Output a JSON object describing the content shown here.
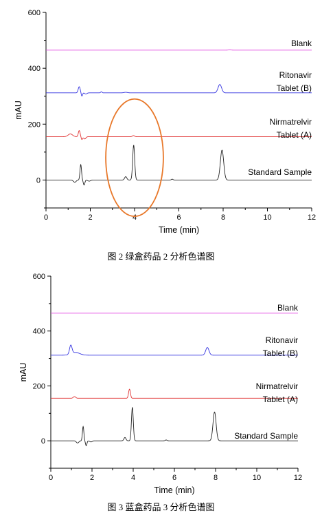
{
  "figures": [
    {
      "caption": "图 2  绿盒药品 2 分析色谱图",
      "chart_data": {
        "type": "line",
        "xlabel": "Time (min)",
        "ylabel": "mAU",
        "xlim": [
          0,
          12
        ],
        "ylim": [
          -100,
          600
        ],
        "xticks": [
          "0",
          "2",
          "4",
          "6",
          "8",
          "10",
          "12"
        ],
        "yticks": [
          "0",
          "200",
          "400",
          "600"
        ],
        "grid": false,
        "legend": "none",
        "series": [
          {
            "name": "Blank",
            "labels": [
              "Blank"
            ],
            "color": "#e040e0",
            "baseline": 465,
            "peaks": [
              [
                8.3,
                1.5,
                0.05
              ]
            ]
          },
          {
            "name": "Ritonavir Tablet (B)",
            "labels": [
              "Ritonavir",
              "Tablet (B)"
            ],
            "color": "#3030e0",
            "baseline": 312,
            "peaks": [
              [
                1.5,
                22,
                0.045
              ],
              [
                1.62,
                -12,
                0.03
              ],
              [
                1.8,
                -4,
                0.05
              ],
              [
                2.5,
                4,
                0.03
              ],
              [
                3.6,
                2,
                0.08
              ],
              [
                7.85,
                30,
                0.08
              ]
            ]
          },
          {
            "name": "Nirmatrelvir Tablet (A)",
            "labels": [
              "Nirmatrelvir",
              "Tablet (A)"
            ],
            "color": "#e03030",
            "baseline": 155,
            "peaks": [
              [
                1.1,
                10,
                0.1
              ],
              [
                1.5,
                22,
                0.04
              ],
              [
                1.62,
                -10,
                0.03
              ],
              [
                1.75,
                -8,
                0.05
              ],
              [
                3.95,
                4,
                0.05
              ]
            ]
          },
          {
            "name": "Standard Sample",
            "labels": [
              "Standard Sample"
            ],
            "color": "#222222",
            "baseline": 0,
            "peaks": [
              [
                1.3,
                -8,
                0.06
              ],
              [
                1.57,
                55,
                0.035
              ],
              [
                1.72,
                -18,
                0.035
              ],
              [
                1.95,
                -4,
                0.06
              ],
              [
                3.6,
                12,
                0.05
              ],
              [
                3.96,
                125,
                0.045
              ],
              [
                5.7,
                3,
                0.04
              ],
              [
                7.95,
                107,
                0.075
              ]
            ]
          }
        ],
        "annotation": {
          "type": "ellipse",
          "center": [
            4.0,
            80
          ],
          "radius": [
            1.3,
            210
          ],
          "color": "#e8782a"
        }
      }
    },
    {
      "caption": "图 3  蓝盒药品 3 分析色谱图",
      "chart_data": {
        "type": "line",
        "xlabel": "Time (min)",
        "ylabel": "mAU",
        "xlim": [
          0,
          12
        ],
        "ylim": [
          -100,
          600
        ],
        "xticks": [
          "0",
          "2",
          "4",
          "6",
          "8",
          "10",
          "12"
        ],
        "yticks": [
          "0",
          "200",
          "400",
          "600"
        ],
        "grid": false,
        "legend": "none",
        "series": [
          {
            "name": "Blank",
            "labels": [
              "Blank"
            ],
            "color": "#e040e0",
            "baseline": 465,
            "peaks": []
          },
          {
            "name": "Ritonavir Tablet (B)",
            "labels": [
              "Ritonavir",
              "Tablet (B)"
            ],
            "color": "#3030e0",
            "baseline": 312,
            "peaks": [
              [
                0.97,
                32,
                0.06
              ],
              [
                1.2,
                10,
                0.2
              ],
              [
                7.6,
                28,
                0.08
              ]
            ]
          },
          {
            "name": "Nirmatrelvir Tablet (A)",
            "labels": [
              "Nirmatrelvir",
              "Tablet (A)"
            ],
            "color": "#e03030",
            "baseline": 155,
            "peaks": [
              [
                1.15,
                6,
                0.06
              ],
              [
                3.82,
                33,
                0.045
              ]
            ]
          },
          {
            "name": "Standard Sample",
            "labels": [
              "Standard Sample"
            ],
            "color": "#222222",
            "baseline": 0,
            "peaks": [
              [
                1.3,
                -8,
                0.06
              ],
              [
                1.57,
                52,
                0.035
              ],
              [
                1.72,
                -18,
                0.035
              ],
              [
                1.95,
                -4,
                0.06
              ],
              [
                3.6,
                12,
                0.05
              ],
              [
                3.96,
                122,
                0.045
              ],
              [
                5.6,
                3,
                0.04
              ],
              [
                7.95,
                105,
                0.075
              ]
            ]
          }
        ]
      }
    }
  ]
}
